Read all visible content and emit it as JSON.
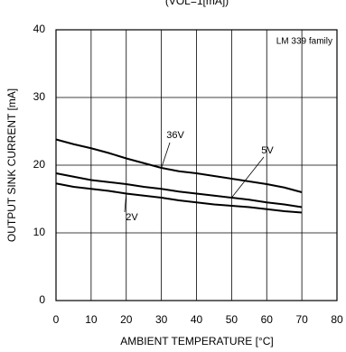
{
  "chart_data": {
    "type": "line",
    "subtitle": "(VOL=1[mA])",
    "annotation": "LM 339 family",
    "x_label": "AMBIENT TEMPERATURE [°C]",
    "y_label": "OUTPUT SINK CURRENT [mA]",
    "x": [
      0,
      5,
      10,
      15,
      20,
      25,
      30,
      35,
      40,
      45,
      50,
      55,
      60,
      65,
      70
    ],
    "series": [
      {
        "name": "36V",
        "color": "#000000",
        "values": [
          23.8,
          23.1,
          22.5,
          21.8,
          21.0,
          20.3,
          19.6,
          19.1,
          18.8,
          18.4,
          18.0,
          17.6,
          17.2,
          16.7,
          16.0
        ]
      },
      {
        "name": "5V",
        "color": "#000000",
        "values": [
          18.8,
          18.3,
          17.8,
          17.5,
          17.2,
          16.8,
          16.5,
          16.1,
          15.8,
          15.5,
          15.2,
          14.9,
          14.5,
          14.2,
          13.8
        ]
      },
      {
        "name": "2V",
        "color": "#000000",
        "values": [
          17.3,
          16.8,
          16.5,
          16.2,
          15.8,
          15.5,
          15.2,
          14.8,
          14.5,
          14.2,
          14.0,
          13.8,
          13.5,
          13.2,
          13.0
        ]
      }
    ],
    "xlim": [
      0,
      80
    ],
    "xticks": [
      0,
      10,
      20,
      30,
      40,
      50,
      60,
      70,
      80
    ],
    "ylim": [
      0,
      40
    ],
    "yticks": [
      0,
      10,
      20,
      30,
      40
    ],
    "grid": true
  }
}
